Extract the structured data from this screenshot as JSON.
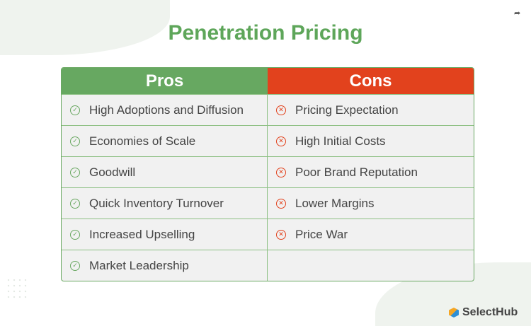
{
  "title": "Penetration Pricing",
  "pros_header": "Pros",
  "cons_header": "Cons",
  "pros": [
    "High Adoptions and Diffusion",
    "Economies of Scale",
    "Goodwill",
    "Quick Inventory Turnover",
    "Increased Upselling",
    "Market Leadership"
  ],
  "cons": [
    "Pricing Expectation",
    "High Initial Costs",
    "Poor Brand Reputation",
    "Lower Margins",
    "Price War",
    ""
  ],
  "logo": "SelectHub",
  "colors": {
    "pros": "#67a861",
    "cons": "#e2421d"
  }
}
